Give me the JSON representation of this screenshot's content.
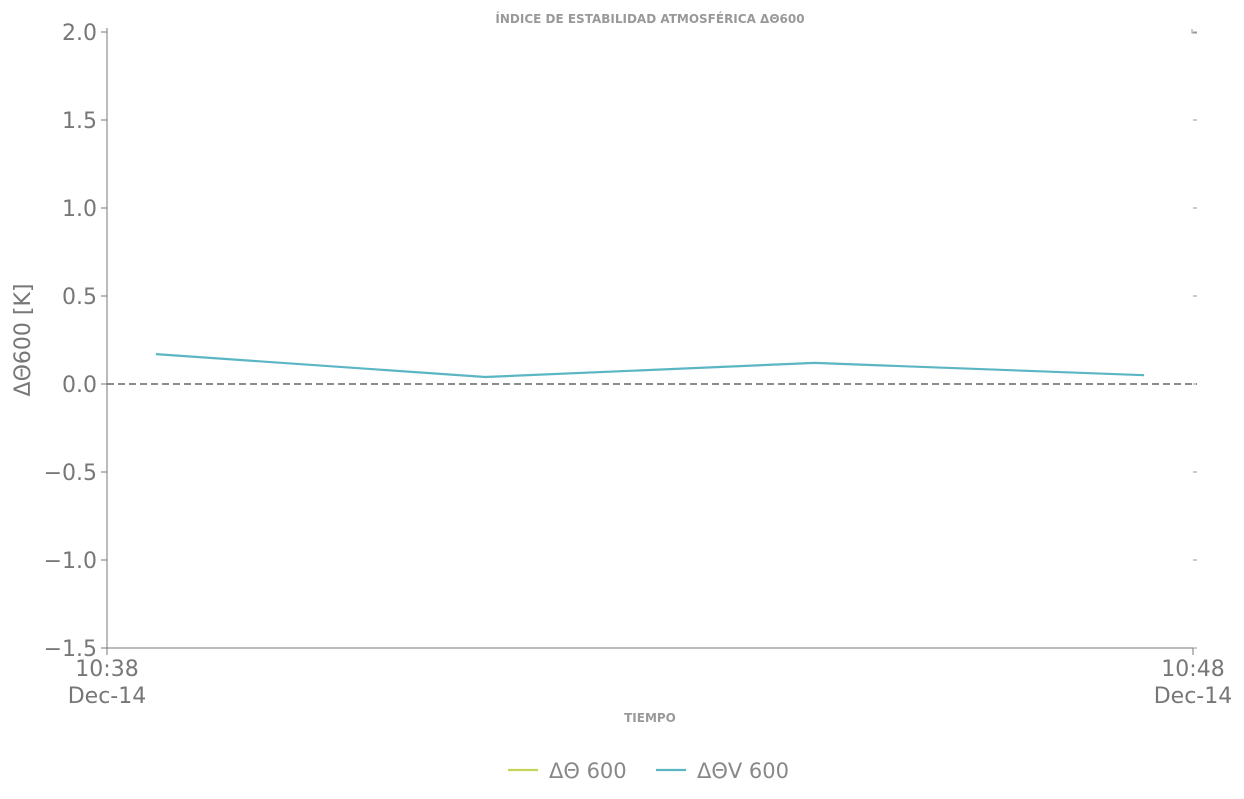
{
  "chart_data": {
    "type": "line",
    "title": "ÍNDICE DE ESTABILIDAD ATMOSFÉRICA ΔΘ600",
    "xlabel": "TIEMPO",
    "ylabel": "ΔΘ600 [K]",
    "ylim": [
      -1.5,
      2.0
    ],
    "yticks": [
      {
        "value": 2.0,
        "label": "2.0"
      },
      {
        "value": 1.5,
        "label": "1.5"
      },
      {
        "value": 1.0,
        "label": "1.0"
      },
      {
        "value": 0.5,
        "label": "0.5"
      },
      {
        "value": 0.0,
        "label": "0.0"
      },
      {
        "value": -0.5,
        "label": "−0.5"
      },
      {
        "value": -1.0,
        "label": "−1.0"
      },
      {
        "value": -1.5,
        "label": "−1.5"
      }
    ],
    "xlim": [
      "2024-12-14T10:38",
      "2024-12-14T10:48"
    ],
    "xticks": [
      {
        "value": "2024-12-14T10:38",
        "time": "10:38",
        "date": "Dec-14"
      },
      {
        "value": "2024-12-14T10:48",
        "time": "10:48",
        "date": "Dec-14"
      }
    ],
    "grid": false,
    "reference_line": {
      "y": 0.0,
      "style": "dashed",
      "color": "#666666"
    },
    "legend_position": "bottom-center",
    "series": [
      {
        "name": "ΔΘ 600",
        "color": "#c5d35a",
        "points": []
      },
      {
        "name": "ΔΘV 600",
        "color": "#5bb6c4",
        "points": [
          {
            "x": "2024-12-14T10:38:27",
            "y": 0.17
          },
          {
            "x": "2024-12-14T10:41:29",
            "y": 0.04
          },
          {
            "x": "2024-12-14T10:44:31",
            "y": 0.12
          },
          {
            "x": "2024-12-14T10:47:33",
            "y": 0.05
          }
        ]
      }
    ]
  }
}
